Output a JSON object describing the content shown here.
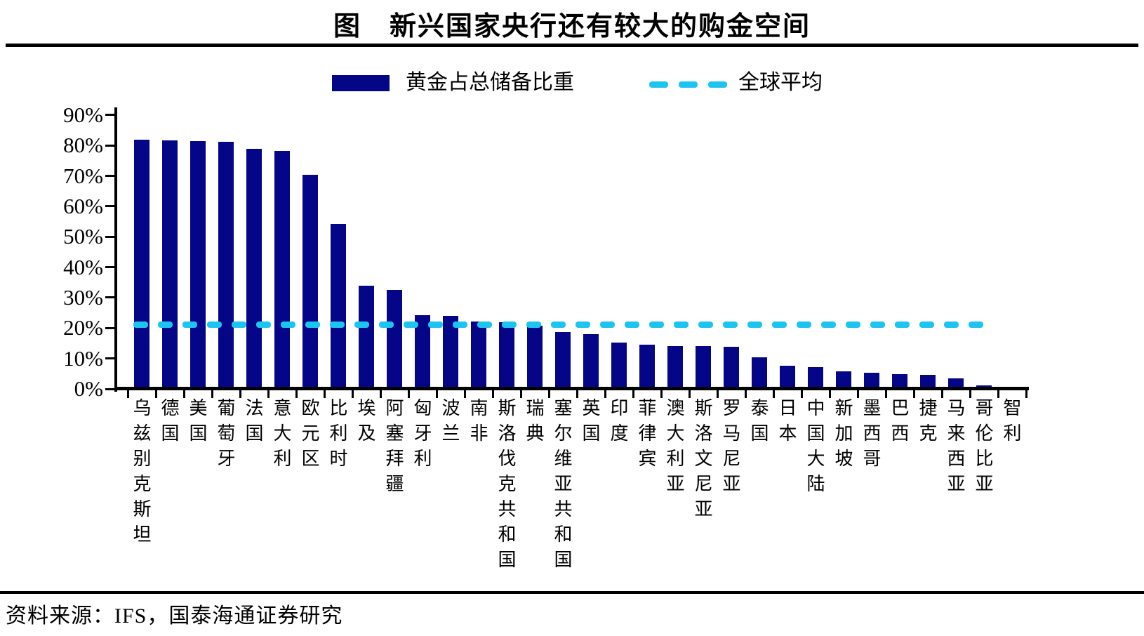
{
  "title": "图　新兴国家央行还有较大的购金空间",
  "legend": {
    "bars_label": "黄金占总储备比重",
    "line_label": "全球平均"
  },
  "source": "资料来源：IFS，国泰海通证券研究",
  "colors": {
    "bar": "#050587",
    "average_line": "#1cc4f0",
    "axis": "#000000"
  },
  "y_axis": {
    "tick_labels": [
      "90%",
      "80%",
      "70%",
      "60%",
      "50%",
      "40%",
      "30%",
      "20%",
      "10%",
      "0%"
    ],
    "min": 0,
    "max": 90,
    "step": 10
  },
  "chart_data": {
    "type": "bar",
    "title": "图　新兴国家央行还有较大的购金空间",
    "xlabel": "",
    "ylabel": "",
    "ylim": [
      0,
      90
    ],
    "y_tick_format": "percent",
    "grid": false,
    "legend_position": "top",
    "categories": [
      "乌兹别克斯坦",
      "德国",
      "美国",
      "葡萄牙",
      "法国",
      "意大利",
      "欧元区",
      "比利时",
      "埃及",
      "阿塞拜疆",
      "匈牙利",
      "波兰",
      "南非",
      "斯洛伐克共和国",
      "瑞典",
      "塞尔维亚共和国",
      "英国",
      "印度",
      "菲律宾",
      "澳大利亚",
      "斯洛文尼亚",
      "罗马尼亚",
      "泰国",
      "日本",
      "中国大陆",
      "新加坡",
      "墨西哥",
      "巴西",
      "捷克",
      "马来西亚",
      "哥伦比亚",
      "智利"
    ],
    "series": [
      {
        "name": "黄金占总储备比重",
        "values": [
          81.8,
          81.6,
          81.5,
          81.3,
          78.8,
          78.2,
          70.4,
          54.1,
          33.8,
          32.5,
          24.3,
          24.1,
          22.2,
          21.9,
          20.7,
          18.6,
          18.1,
          15.2,
          14.6,
          14.1,
          14.0,
          13.8,
          10.3,
          7.5,
          7.2,
          5.7,
          5.4,
          4.8,
          4.5,
          3.5,
          1.2,
          0.5
        ]
      }
    ],
    "reference_line": {
      "name": "全球平均",
      "value": 21.1,
      "style": "dashed",
      "color": "#1cc4f0"
    }
  }
}
